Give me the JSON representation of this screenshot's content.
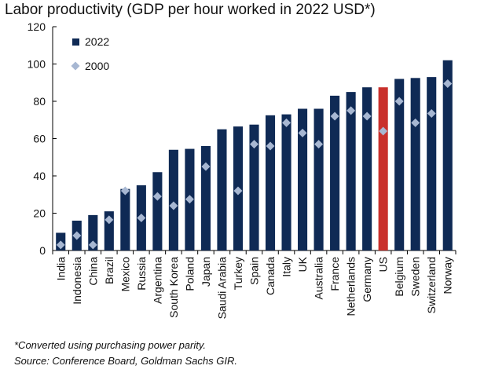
{
  "chart_data": {
    "type": "bar",
    "title": "Labor productivity (GDP per hour worked in 2022 USD*)",
    "xlabel": "",
    "ylabel": "",
    "ylim": [
      0,
      120
    ],
    "yticks": [
      0,
      20,
      40,
      60,
      80,
      100,
      120
    ],
    "categories": [
      "India",
      "Indonesia",
      "China",
      "Brazil",
      "Mexico",
      "Russia",
      "Argentina",
      "South Korea",
      "Poland",
      "Japan",
      "Saudi Arabia",
      "Turkey",
      "Spain",
      "Canada",
      "Italy",
      "UK",
      "Australia",
      "France",
      "Netherlands",
      "Germany",
      "US",
      "Belgium",
      "Sweden",
      "Switzerland",
      "Norway"
    ],
    "series": [
      {
        "name": "2022",
        "mark": "bar",
        "color": "#0f2a55",
        "highlight": {
          "category": "US",
          "color": "#c9302c"
        },
        "values": [
          9.5,
          16,
          19,
          21,
          33,
          35,
          42,
          54,
          54.5,
          56,
          65,
          66.5,
          67.5,
          72.5,
          73,
          76,
          76,
          83,
          85,
          87.5,
          87.5,
          92,
          92.5,
          93,
          102
        ]
      },
      {
        "name": "2000",
        "mark": "diamond",
        "color": "#a7b7d2",
        "values": [
          3,
          8,
          3,
          16.5,
          32,
          17.5,
          29,
          24,
          27.5,
          45,
          null,
          32,
          57,
          56,
          68.5,
          63,
          57,
          72,
          75,
          72,
          64,
          80,
          68.5,
          73.5,
          89.5
        ]
      }
    ],
    "legend": "top-left"
  },
  "footnote": "*Converted using purchasing power parity.",
  "source": "Source: Conference Board, Goldman Sachs GIR."
}
